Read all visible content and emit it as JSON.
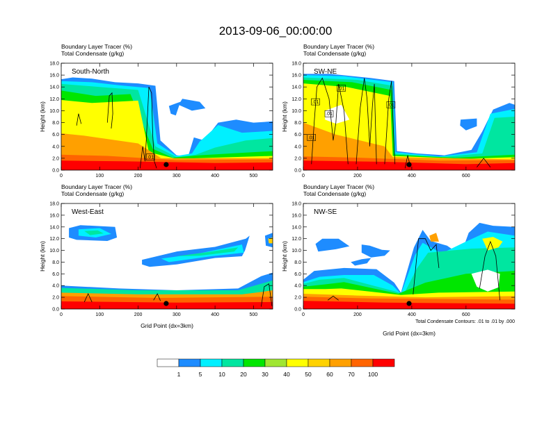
{
  "title": "2013-09-06_00:00:00",
  "chart_data": {
    "type": "heatmap",
    "title": "2013-09-06_00:00:00",
    "variables": [
      "Boundary Layer Tracer   (%)",
      "Total Condensate   (g/kg)"
    ],
    "ylabel": "Height (km)",
    "xlabel": "Grid Point (dx=3km)",
    "y_ticks": [
      "0.0",
      "2.0",
      "4.0",
      "6.0",
      "8.0",
      "10.0",
      "12.0",
      "14.0",
      "16.0",
      "18.0"
    ],
    "ylim": [
      0,
      18
    ],
    "contour_note": "Total Condensate Contours: .01 to .01 by .000",
    "colorbar": {
      "levels": [
        "1",
        "5",
        "10",
        "20",
        "30",
        "40",
        "50",
        "60",
        "70",
        "100"
      ],
      "colors": [
        "#ffffff",
        "#1e8cff",
        "#00f0ff",
        "#00e6a0",
        "#00e600",
        "#a0e632",
        "#ffff00",
        "#ffd200",
        "#ffa000",
        "#ff6400",
        "#ff0000"
      ]
    },
    "panels": [
      {
        "label": "South-North",
        "xlim": [
          0,
          550
        ],
        "x_ticks": [
          "0",
          "100",
          "200",
          "300",
          "400",
          "500"
        ],
        "marker_x": 273,
        "contour_labels": [
          ".01"
        ]
      },
      {
        "label": "SW-NE",
        "xlim": [
          0,
          780
        ],
        "x_ticks": [
          "0",
          "200",
          "400",
          "600"
        ],
        "marker_x": 390,
        "contour_labels": [
          ".01",
          ".01",
          ".01",
          ".01",
          ".01"
        ]
      },
      {
        "label": "West-East",
        "xlim": [
          0,
          550
        ],
        "x_ticks": [
          "0",
          "100",
          "200",
          "300",
          "400",
          "500"
        ],
        "marker_x": 273,
        "contour_labels": []
      },
      {
        "label": "NW-SE",
        "xlim": [
          0,
          780
        ],
        "x_ticks": [
          "0",
          "200",
          "400",
          "600"
        ],
        "marker_x": 390,
        "contour_labels": []
      }
    ]
  }
}
